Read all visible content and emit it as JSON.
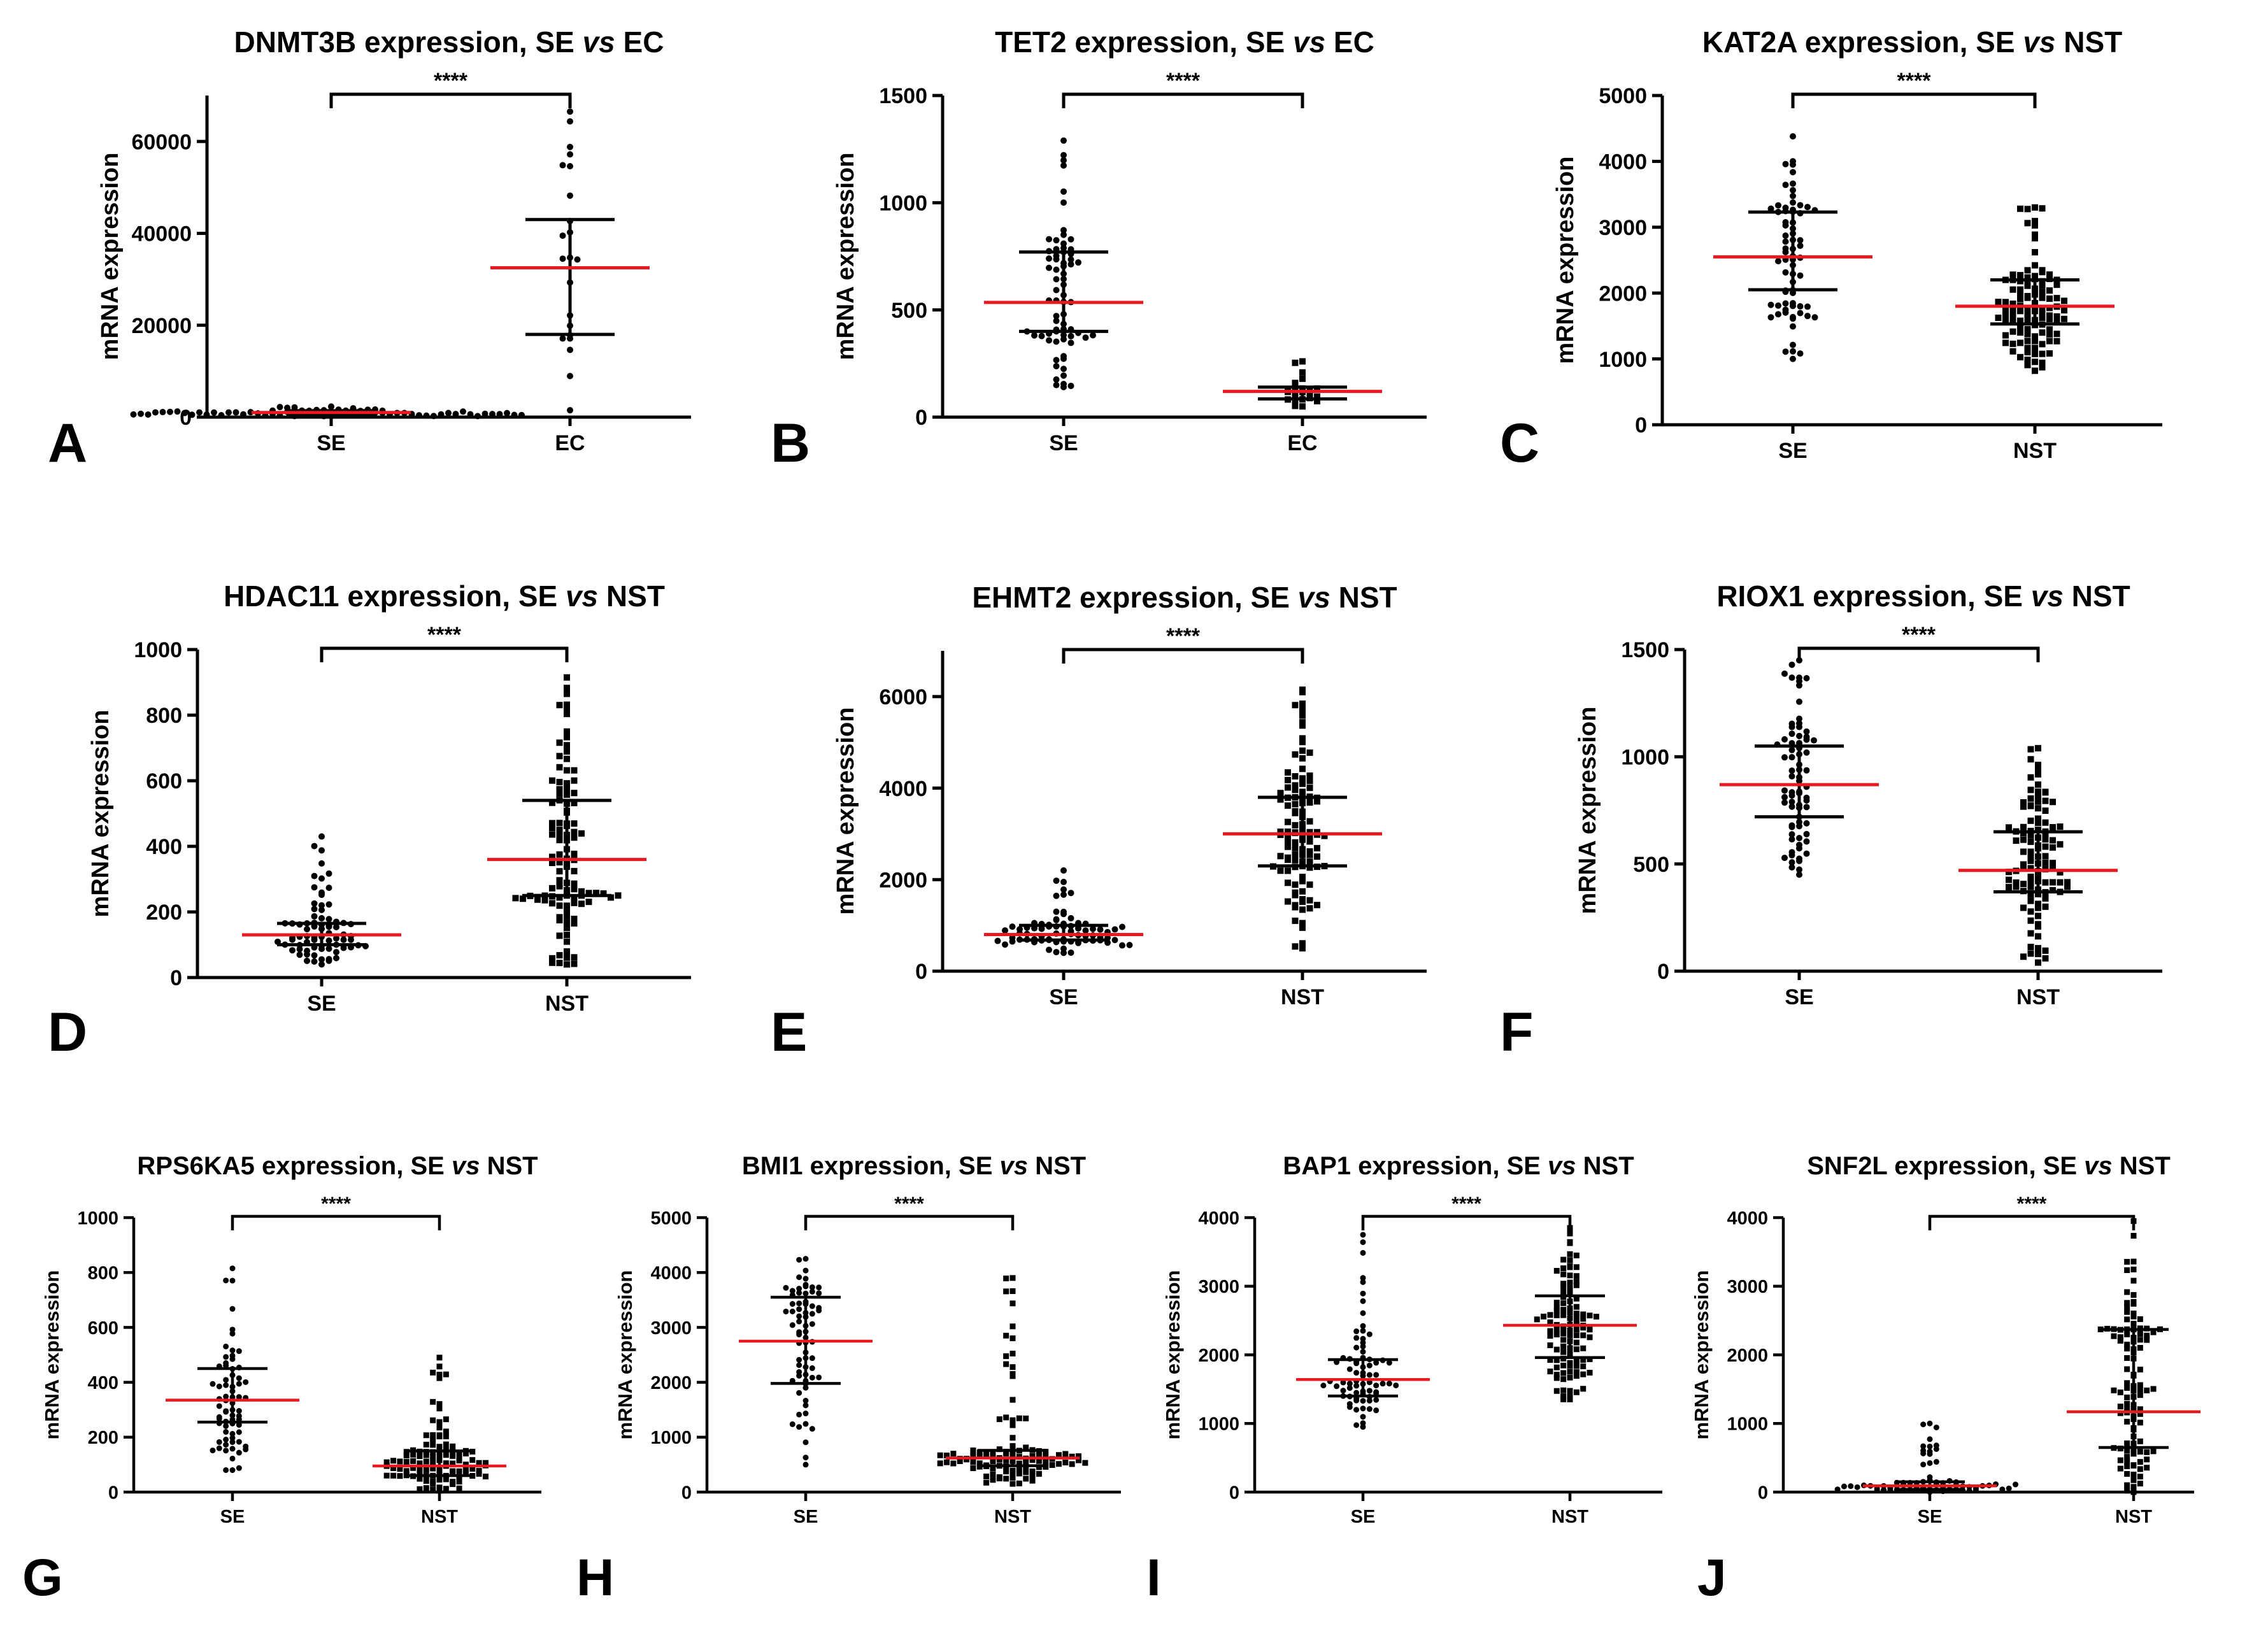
{
  "figure": {
    "common": {
      "ylabel": "mRNA expression",
      "significance": "****",
      "mean_color": "#e8191f",
      "point_color": "#000000",
      "whisker_color": "#000000"
    },
    "chart_data": [
      {
        "type": "scatter",
        "panel_letter": "A",
        "title": "DNMT3B expression, SE vs EC",
        "title_parts": [
          "DNMT3B expression, SE ",
          "vs",
          " EC"
        ],
        "xlabel": "",
        "ylabel": "mRNA expression",
        "categories": [
          "SE",
          "EC"
        ],
        "ylim": [
          0,
          70000
        ],
        "yticks": [
          0,
          20000,
          40000,
          60000
        ],
        "yticklabels": [
          "0",
          "20000",
          "40000",
          "60000"
        ],
        "groups": [
          {
            "name": "SE",
            "n": 70,
            "mean": 1000,
            "sd_low": 600,
            "sd_high": 1400,
            "min": 200,
            "max": 2300,
            "marker": "circle"
          },
          {
            "name": "EC",
            "n": 22,
            "mean": 32500,
            "sd_low": 18000,
            "sd_high": 43000,
            "min": 1500,
            "max": 66500,
            "marker": "circle"
          }
        ],
        "significance": "****"
      },
      {
        "type": "scatter",
        "panel_letter": "B",
        "title": "TET2 expression, SE vs EC",
        "title_parts": [
          "TET2 expression, SE ",
          "vs",
          " EC"
        ],
        "xlabel": "",
        "ylabel": "mRNA expression",
        "categories": [
          "SE",
          "EC"
        ],
        "ylim": [
          0,
          1500
        ],
        "yticks": [
          0,
          500,
          1000,
          1500
        ],
        "yticklabels": [
          "0",
          "500",
          "1000",
          "1500"
        ],
        "groups": [
          {
            "name": "SE",
            "n": 70,
            "mean": 535,
            "sd_low": 400,
            "sd_high": 770,
            "min": 140,
            "max": 1290,
            "marker": "circle"
          },
          {
            "name": "EC",
            "n": 22,
            "mean": 120,
            "sd_low": 85,
            "sd_high": 140,
            "min": 50,
            "max": 260,
            "marker": "square"
          }
        ],
        "significance": "****"
      },
      {
        "type": "scatter",
        "panel_letter": "C",
        "title": "KAT2A expression, SE vs NST",
        "title_parts": [
          "KAT2A expression, SE ",
          "vs",
          " NST"
        ],
        "xlabel": "",
        "ylabel": "mRNA expression",
        "categories": [
          "SE",
          "NST"
        ],
        "ylim": [
          0,
          5000
        ],
        "yticks": [
          0,
          1000,
          2000,
          3000,
          4000,
          5000
        ],
        "yticklabels": [
          "0",
          "1000",
          "2000",
          "3000",
          "4000",
          "5000"
        ],
        "groups": [
          {
            "name": "SE",
            "n": 70,
            "mean": 2550,
            "sd_low": 2050,
            "sd_high": 3230,
            "min": 1000,
            "max": 4380,
            "marker": "circle"
          },
          {
            "name": "NST",
            "n": 110,
            "mean": 1800,
            "sd_low": 1530,
            "sd_high": 2200,
            "min": 820,
            "max": 3300,
            "marker": "square"
          }
        ],
        "significance": "****"
      },
      {
        "type": "scatter",
        "panel_letter": "D",
        "title": "HDAC11 expression, SE vs NST",
        "title_parts": [
          "HDAC11 expression, SE ",
          "vs",
          " NST"
        ],
        "xlabel": "",
        "ylabel": "mRNA expression",
        "categories": [
          "SE",
          "NST"
        ],
        "ylim": [
          0,
          1000
        ],
        "yticks": [
          0,
          200,
          400,
          600,
          800,
          1000
        ],
        "yticklabels": [
          "0",
          "200",
          "400",
          "600",
          "800",
          "1000"
        ],
        "groups": [
          {
            "name": "SE",
            "n": 75,
            "mean": 130,
            "sd_low": 100,
            "sd_high": 165,
            "min": 40,
            "max": 430,
            "marker": "circle"
          },
          {
            "name": "NST",
            "n": 110,
            "mean": 360,
            "sd_low": 250,
            "sd_high": 540,
            "min": 40,
            "max": 915,
            "marker": "square"
          }
        ],
        "significance": "****"
      },
      {
        "type": "scatter",
        "panel_letter": "E",
        "title": "EHMT2 expression, SE vs NST",
        "title_parts": [
          "EHMT2 expression, SE ",
          "vs",
          " NST"
        ],
        "xlabel": "",
        "ylabel": "mRNA expression",
        "categories": [
          "SE",
          "NST"
        ],
        "ylim": [
          0,
          7000
        ],
        "yticks": [
          0,
          2000,
          4000,
          6000
        ],
        "yticklabels": [
          "0",
          "2000",
          "4000",
          "6000"
        ],
        "groups": [
          {
            "name": "SE",
            "n": 75,
            "mean": 800,
            "sd_low": 680,
            "sd_high": 1000,
            "min": 400,
            "max": 2200,
            "marker": "circle"
          },
          {
            "name": "NST",
            "n": 110,
            "mean": 3000,
            "sd_low": 2300,
            "sd_high": 3800,
            "min": 500,
            "max": 6150,
            "marker": "square"
          }
        ],
        "significance": "****"
      },
      {
        "type": "scatter",
        "panel_letter": "F",
        "title": "RIOX1 expression, SE vs NST",
        "title_parts": [
          "RIOX1 expression, SE ",
          "vs",
          " NST"
        ],
        "xlabel": "",
        "ylabel": "mRNA expression",
        "categories": [
          "SE",
          "NST"
        ],
        "ylim": [
          0,
          1500
        ],
        "yticks": [
          0,
          500,
          1000,
          1500
        ],
        "yticklabels": [
          "0",
          "500",
          "1000",
          "1500"
        ],
        "groups": [
          {
            "name": "SE",
            "n": 75,
            "mean": 870,
            "sd_low": 720,
            "sd_high": 1050,
            "min": 450,
            "max": 1450,
            "marker": "circle"
          },
          {
            "name": "NST",
            "n": 110,
            "mean": 470,
            "sd_low": 370,
            "sd_high": 650,
            "min": 40,
            "max": 1040,
            "marker": "square"
          }
        ],
        "significance": "****"
      },
      {
        "type": "scatter",
        "panel_letter": "G",
        "title": "RPS6KA5 expression, SE vs NST",
        "title_parts": [
          "RPS6KA5 expression, SE ",
          "vs",
          " NST"
        ],
        "xlabel": "",
        "ylabel": "mRNA expression",
        "categories": [
          "SE",
          "NST"
        ],
        "ylim": [
          0,
          1000
        ],
        "yticks": [
          0,
          200,
          400,
          600,
          800,
          1000
        ],
        "yticklabels": [
          "0",
          "200",
          "400",
          "600",
          "800",
          "1000"
        ],
        "groups": [
          {
            "name": "SE",
            "n": 70,
            "mean": 335,
            "sd_low": 255,
            "sd_high": 450,
            "min": 80,
            "max": 815,
            "marker": "circle"
          },
          {
            "name": "NST",
            "n": 110,
            "mean": 95,
            "sd_low": 60,
            "sd_high": 150,
            "min": 5,
            "max": 490,
            "marker": "square"
          }
        ],
        "significance": "****"
      },
      {
        "type": "scatter",
        "panel_letter": "H",
        "title": "BMI1 expression, SE vs NST",
        "title_parts": [
          "BMI1 expression, SE ",
          "vs",
          " NST"
        ],
        "xlabel": "",
        "ylabel": "mRNA expression",
        "categories": [
          "SE",
          "NST"
        ],
        "ylim": [
          0,
          5000
        ],
        "yticks": [
          0,
          1000,
          2000,
          3000,
          4000,
          5000
        ],
        "yticklabels": [
          "0",
          "1000",
          "2000",
          "3000",
          "4000",
          "5000"
        ],
        "groups": [
          {
            "name": "SE",
            "n": 70,
            "mean": 2750,
            "sd_low": 1980,
            "sd_high": 3550,
            "min": 500,
            "max": 4250,
            "marker": "circle"
          },
          {
            "name": "NST",
            "n": 110,
            "mean": 620,
            "sd_low": 480,
            "sd_high": 760,
            "min": 150,
            "max": 3900,
            "marker": "square"
          }
        ],
        "significance": "****"
      },
      {
        "type": "scatter",
        "panel_letter": "I",
        "title": "BAP1 expression, SE vs NST",
        "title_parts": [
          "BAP1 expression, SE ",
          "vs",
          " NST"
        ],
        "xlabel": "",
        "ylabel": "mRNA expression",
        "categories": [
          "SE",
          "NST"
        ],
        "ylim": [
          0,
          4000
        ],
        "yticks": [
          0,
          1000,
          2000,
          3000,
          4000
        ],
        "yticklabels": [
          "0",
          "1000",
          "2000",
          "3000",
          "4000"
        ],
        "groups": [
          {
            "name": "SE",
            "n": 75,
            "mean": 1640,
            "sd_low": 1400,
            "sd_high": 1930,
            "min": 950,
            "max": 3750,
            "marker": "circle"
          },
          {
            "name": "NST",
            "n": 110,
            "mean": 2430,
            "sd_low": 1960,
            "sd_high": 2860,
            "min": 1350,
            "max": 3850,
            "marker": "square"
          }
        ],
        "significance": "****"
      },
      {
        "type": "scatter",
        "panel_letter": "J",
        "title": "SNF2L expression, SE vs NST",
        "title_parts": [
          "SNF2L expression, SE ",
          "vs",
          " NST"
        ],
        "xlabel": "",
        "ylabel": "mRNA expression",
        "categories": [
          "SE",
          "NST"
        ],
        "ylim": [
          0,
          4000
        ],
        "yticks": [
          0,
          1000,
          2000,
          3000,
          4000
        ],
        "yticklabels": [
          "0",
          "1000",
          "2000",
          "3000",
          "4000"
        ],
        "groups": [
          {
            "name": "SE",
            "n": 70,
            "mean": 90,
            "sd_low": 40,
            "sd_high": 150,
            "min": 0,
            "max": 1000,
            "marker": "circle"
          },
          {
            "name": "NST",
            "n": 110,
            "mean": 1170,
            "sd_low": 650,
            "sd_high": 2370,
            "min": 0,
            "max": 3950,
            "marker": "square"
          }
        ],
        "significance": "****"
      }
    ]
  }
}
